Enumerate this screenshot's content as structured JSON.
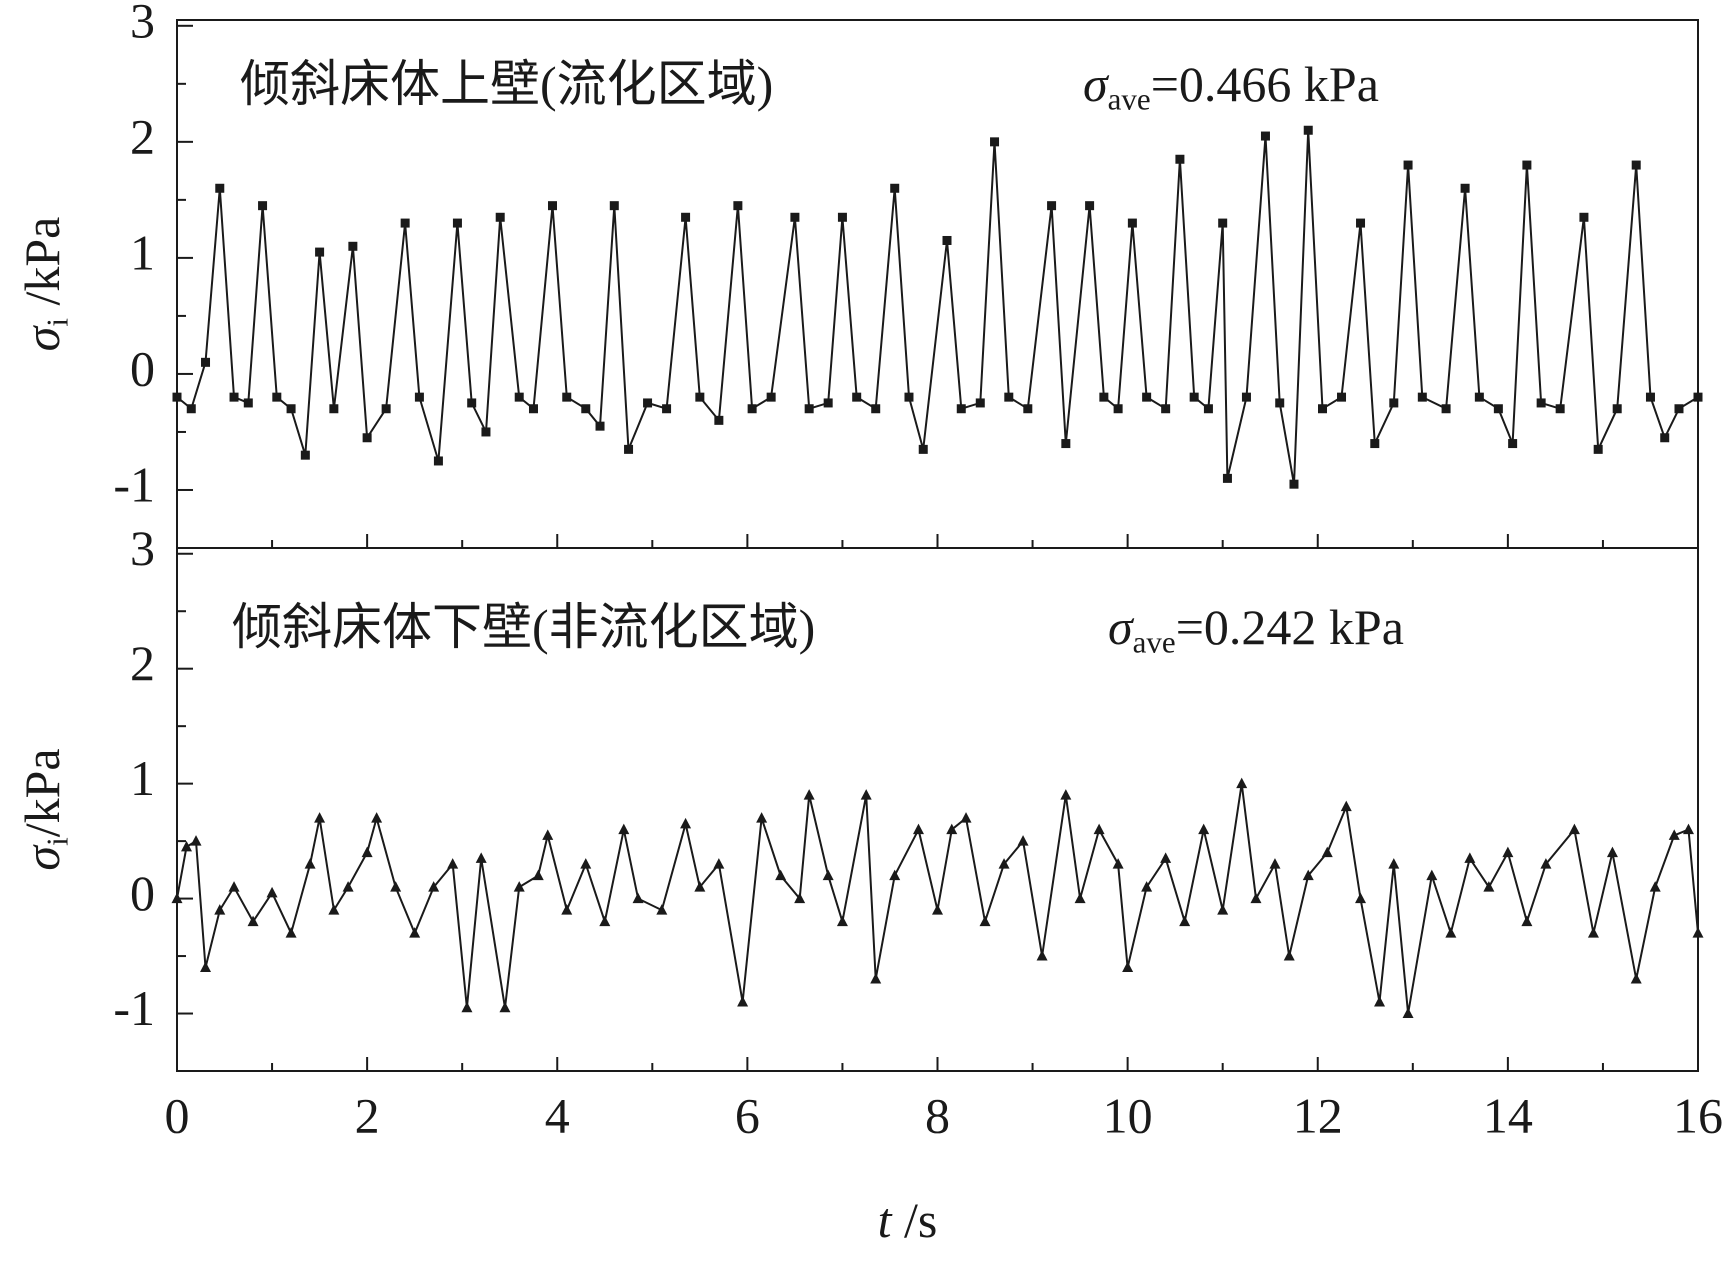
{
  "chart_data": [
    {
      "type": "line",
      "marker": "square",
      "color": "#1a1a1a",
      "annotations": [
        {
          "text": "倾斜床体上壁(流化区域)"
        },
        {
          "symbol": "σ",
          "subscript": "ave",
          "text": "=0.466 kPa"
        }
      ],
      "ylabel": {
        "symbol": "σ",
        "subscript": "i",
        "text": " /kPa"
      },
      "xlim": [
        0,
        16
      ],
      "ylim": [
        -1.5,
        3.05
      ],
      "yticks": [
        -1,
        0,
        1,
        2,
        3
      ],
      "x": [
        0,
        0.15,
        0.3,
        0.45,
        0.6,
        0.75,
        0.9,
        1.05,
        1.2,
        1.35,
        1.5,
        1.65,
        1.85,
        2.0,
        2.2,
        2.4,
        2.55,
        2.75,
        2.95,
        3.1,
        3.25,
        3.4,
        3.6,
        3.75,
        3.95,
        4.1,
        4.3,
        4.45,
        4.6,
        4.75,
        4.95,
        5.15,
        5.35,
        5.5,
        5.7,
        5.9,
        6.05,
        6.25,
        6.5,
        6.65,
        6.85,
        7.0,
        7.15,
        7.35,
        7.55,
        7.7,
        7.85,
        8.1,
        8.25,
        8.45,
        8.6,
        8.75,
        8.95,
        9.2,
        9.35,
        9.6,
        9.75,
        9.9,
        10.05,
        10.2,
        10.4,
        10.55,
        10.7,
        10.85,
        11.0,
        11.05,
        11.25,
        11.45,
        11.6,
        11.75,
        11.9,
        12.05,
        12.25,
        12.45,
        12.6,
        12.8,
        12.95,
        13.1,
        13.35,
        13.55,
        13.7,
        13.9,
        14.05,
        14.2,
        14.35,
        14.55,
        14.8,
        14.95,
        15.15,
        15.35,
        15.5,
        15.65,
        15.8,
        16.0
      ],
      "values": [
        -0.2,
        -0.3,
        0.1,
        1.6,
        -0.2,
        -0.25,
        1.45,
        -0.2,
        -0.3,
        -0.7,
        1.05,
        -0.3,
        1.1,
        -0.55,
        -0.3,
        1.3,
        -0.2,
        -0.75,
        1.3,
        -0.25,
        -0.5,
        1.35,
        -0.2,
        -0.3,
        1.45,
        -0.2,
        -0.3,
        -0.45,
        1.45,
        -0.65,
        -0.25,
        -0.3,
        1.35,
        -0.2,
        -0.4,
        1.45,
        -0.3,
        -0.2,
        1.35,
        -0.3,
        -0.25,
        1.35,
        -0.2,
        -0.3,
        1.6,
        -0.2,
        -0.65,
        1.15,
        -0.3,
        -0.25,
        2.0,
        -0.2,
        -0.3,
        1.45,
        -0.6,
        1.45,
        -0.2,
        -0.3,
        1.3,
        -0.2,
        -0.3,
        1.85,
        -0.2,
        -0.3,
        1.3,
        -0.9,
        -0.2,
        2.05,
        -0.25,
        -0.95,
        2.1,
        -0.3,
        -0.2,
        1.3,
        -0.6,
        -0.25,
        1.8,
        -0.2,
        -0.3,
        1.6,
        -0.2,
        -0.3,
        -0.6,
        1.8,
        -0.25,
        -0.3,
        1.35,
        -0.65,
        -0.3,
        1.8,
        -0.2,
        -0.55,
        -0.3,
        -0.2
      ]
    },
    {
      "type": "line",
      "marker": "triangle",
      "color": "#1a1a1a",
      "annotations": [
        {
          "text": "倾斜床体下壁(非流化区域)"
        },
        {
          "symbol": "σ",
          "subscript": "ave",
          "text": "=0.242 kPa"
        }
      ],
      "ylabel": {
        "symbol": "σ",
        "subscript": "i",
        "text": "/kPa"
      },
      "xlabel": {
        "symbol": "t",
        "text": " /s"
      },
      "xlim": [
        0,
        16
      ],
      "xticks": [
        0,
        2,
        4,
        6,
        8,
        10,
        12,
        14,
        16
      ],
      "ylim": [
        -1.5,
        3.05
      ],
      "yticks": [
        -1,
        0,
        1,
        2,
        3
      ],
      "x": [
        0,
        0.1,
        0.2,
        0.3,
        0.45,
        0.6,
        0.8,
        1.0,
        1.2,
        1.4,
        1.5,
        1.65,
        1.8,
        2.0,
        2.1,
        2.3,
        2.5,
        2.7,
        2.9,
        3.05,
        3.2,
        3.45,
        3.6,
        3.8,
        3.9,
        4.1,
        4.3,
        4.5,
        4.7,
        4.85,
        5.1,
        5.35,
        5.5,
        5.7,
        5.95,
        6.15,
        6.35,
        6.55,
        6.65,
        6.85,
        7.0,
        7.25,
        7.35,
        7.55,
        7.8,
        8.0,
        8.15,
        8.3,
        8.5,
        8.7,
        8.9,
        9.1,
        9.35,
        9.5,
        9.7,
        9.9,
        10.0,
        10.2,
        10.4,
        10.6,
        10.8,
        11.0,
        11.2,
        11.35,
        11.55,
        11.7,
        11.9,
        12.1,
        12.3,
        12.45,
        12.65,
        12.8,
        12.95,
        13.2,
        13.4,
        13.6,
        13.8,
        14.0,
        14.2,
        14.4,
        14.7,
        14.9,
        15.1,
        15.35,
        15.55,
        15.75,
        15.9,
        16.0
      ],
      "values": [
        0,
        0.45,
        0.5,
        -0.6,
        -0.1,
        0.1,
        -0.2,
        0.05,
        -0.3,
        0.3,
        0.7,
        -0.1,
        0.1,
        0.4,
        0.7,
        0.1,
        -0.3,
        0.1,
        0.3,
        -0.95,
        0.35,
        -0.95,
        0.1,
        0.2,
        0.55,
        -0.1,
        0.3,
        -0.2,
        0.6,
        0,
        -0.1,
        0.65,
        0.1,
        0.3,
        -0.9,
        0.7,
        0.2,
        0,
        0.9,
        0.2,
        -0.2,
        0.9,
        -0.7,
        0.2,
        0.6,
        -0.1,
        0.6,
        0.7,
        -0.2,
        0.3,
        0.5,
        -0.5,
        0.9,
        0,
        0.6,
        0.3,
        -0.6,
        0.1,
        0.35,
        -0.2,
        0.6,
        -0.1,
        1.0,
        0,
        0.3,
        -0.5,
        0.2,
        0.4,
        0.8,
        0,
        -0.9,
        0.3,
        -1.0,
        0.2,
        -0.3,
        0.35,
        0.1,
        0.4,
        -0.2,
        0.3,
        0.6,
        -0.3,
        0.4,
        -0.7,
        0.1,
        0.55,
        0.6,
        -0.3
      ]
    }
  ]
}
